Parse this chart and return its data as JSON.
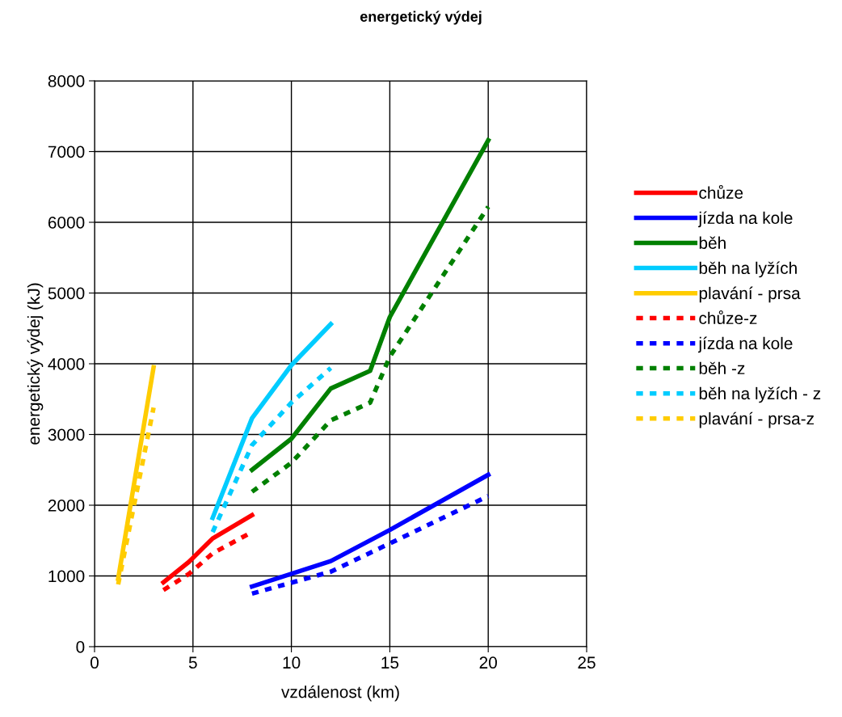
{
  "chart_data": {
    "type": "line",
    "title": "energetický výdej",
    "xlabel": "vzdálenost (km)",
    "ylabel": "energetický výdej (kJ)",
    "xlim": [
      0,
      25
    ],
    "xticks": [
      0,
      5,
      10,
      15,
      20,
      25
    ],
    "ylim": [
      0,
      8000
    ],
    "yticks": [
      0,
      1000,
      2000,
      3000,
      4000,
      5000,
      6000,
      7000,
      8000
    ],
    "grid": true,
    "legend": "right",
    "marker": "none",
    "series": [
      {
        "name": "chůze",
        "color": "#ff0000",
        "line_style": "solid",
        "x": [
          3.5,
          4.8,
          6,
          8
        ],
        "values": [
          910,
          1200,
          1530,
          1860
        ]
      },
      {
        "name": "jízda na kole",
        "color": "#0000ff",
        "line_style": "solid",
        "x": [
          8,
          12,
          15,
          20
        ],
        "values": [
          850,
          1210,
          1650,
          2430
        ]
      },
      {
        "name": "běh",
        "color": "#008000",
        "line_style": "solid",
        "x": [
          8,
          10,
          12,
          14,
          15,
          20
        ],
        "values": [
          2500,
          2940,
          3650,
          3900,
          4660,
          7160
        ]
      },
      {
        "name": "běh na lyžích",
        "color": "#00ccff",
        "line_style": "solid",
        "x": [
          6,
          8,
          10,
          12
        ],
        "values": [
          1820,
          3230,
          3980,
          4560
        ]
      },
      {
        "name": "plavání - prsa",
        "color": "#ffcc00",
        "line_style": "solid",
        "x": [
          1.2,
          3
        ],
        "values": [
          960,
          3950
        ]
      },
      {
        "name": "chůze-z",
        "color": "#ff0000",
        "line_style": "dashed",
        "x": [
          3.5,
          4.8,
          6,
          8
        ],
        "values": [
          800,
          1030,
          1320,
          1620
        ]
      },
      {
        "name": "jízda na kole",
        "color": "#0000ff",
        "line_style": "dashed",
        "x": [
          8,
          12,
          15,
          20
        ],
        "values": [
          750,
          1060,
          1460,
          2130
        ]
      },
      {
        "name": "běh -z",
        "color": "#008000",
        "line_style": "dashed",
        "x": [
          8,
          10,
          12,
          14,
          15,
          20
        ],
        "values": [
          2190,
          2600,
          3200,
          3450,
          4100,
          6220
        ]
      },
      {
        "name": "běh na lyžích - z",
        "color": "#00ccff",
        "line_style": "dashed",
        "x": [
          6,
          8,
          10,
          12
        ],
        "values": [
          1620,
          2850,
          3450,
          3940
        ]
      },
      {
        "name": "plavání - prsa-z",
        "color": "#ffcc00",
        "line_style": "dashed",
        "x": [
          1.2,
          3
        ],
        "values": [
          880,
          3380
        ]
      }
    ]
  }
}
